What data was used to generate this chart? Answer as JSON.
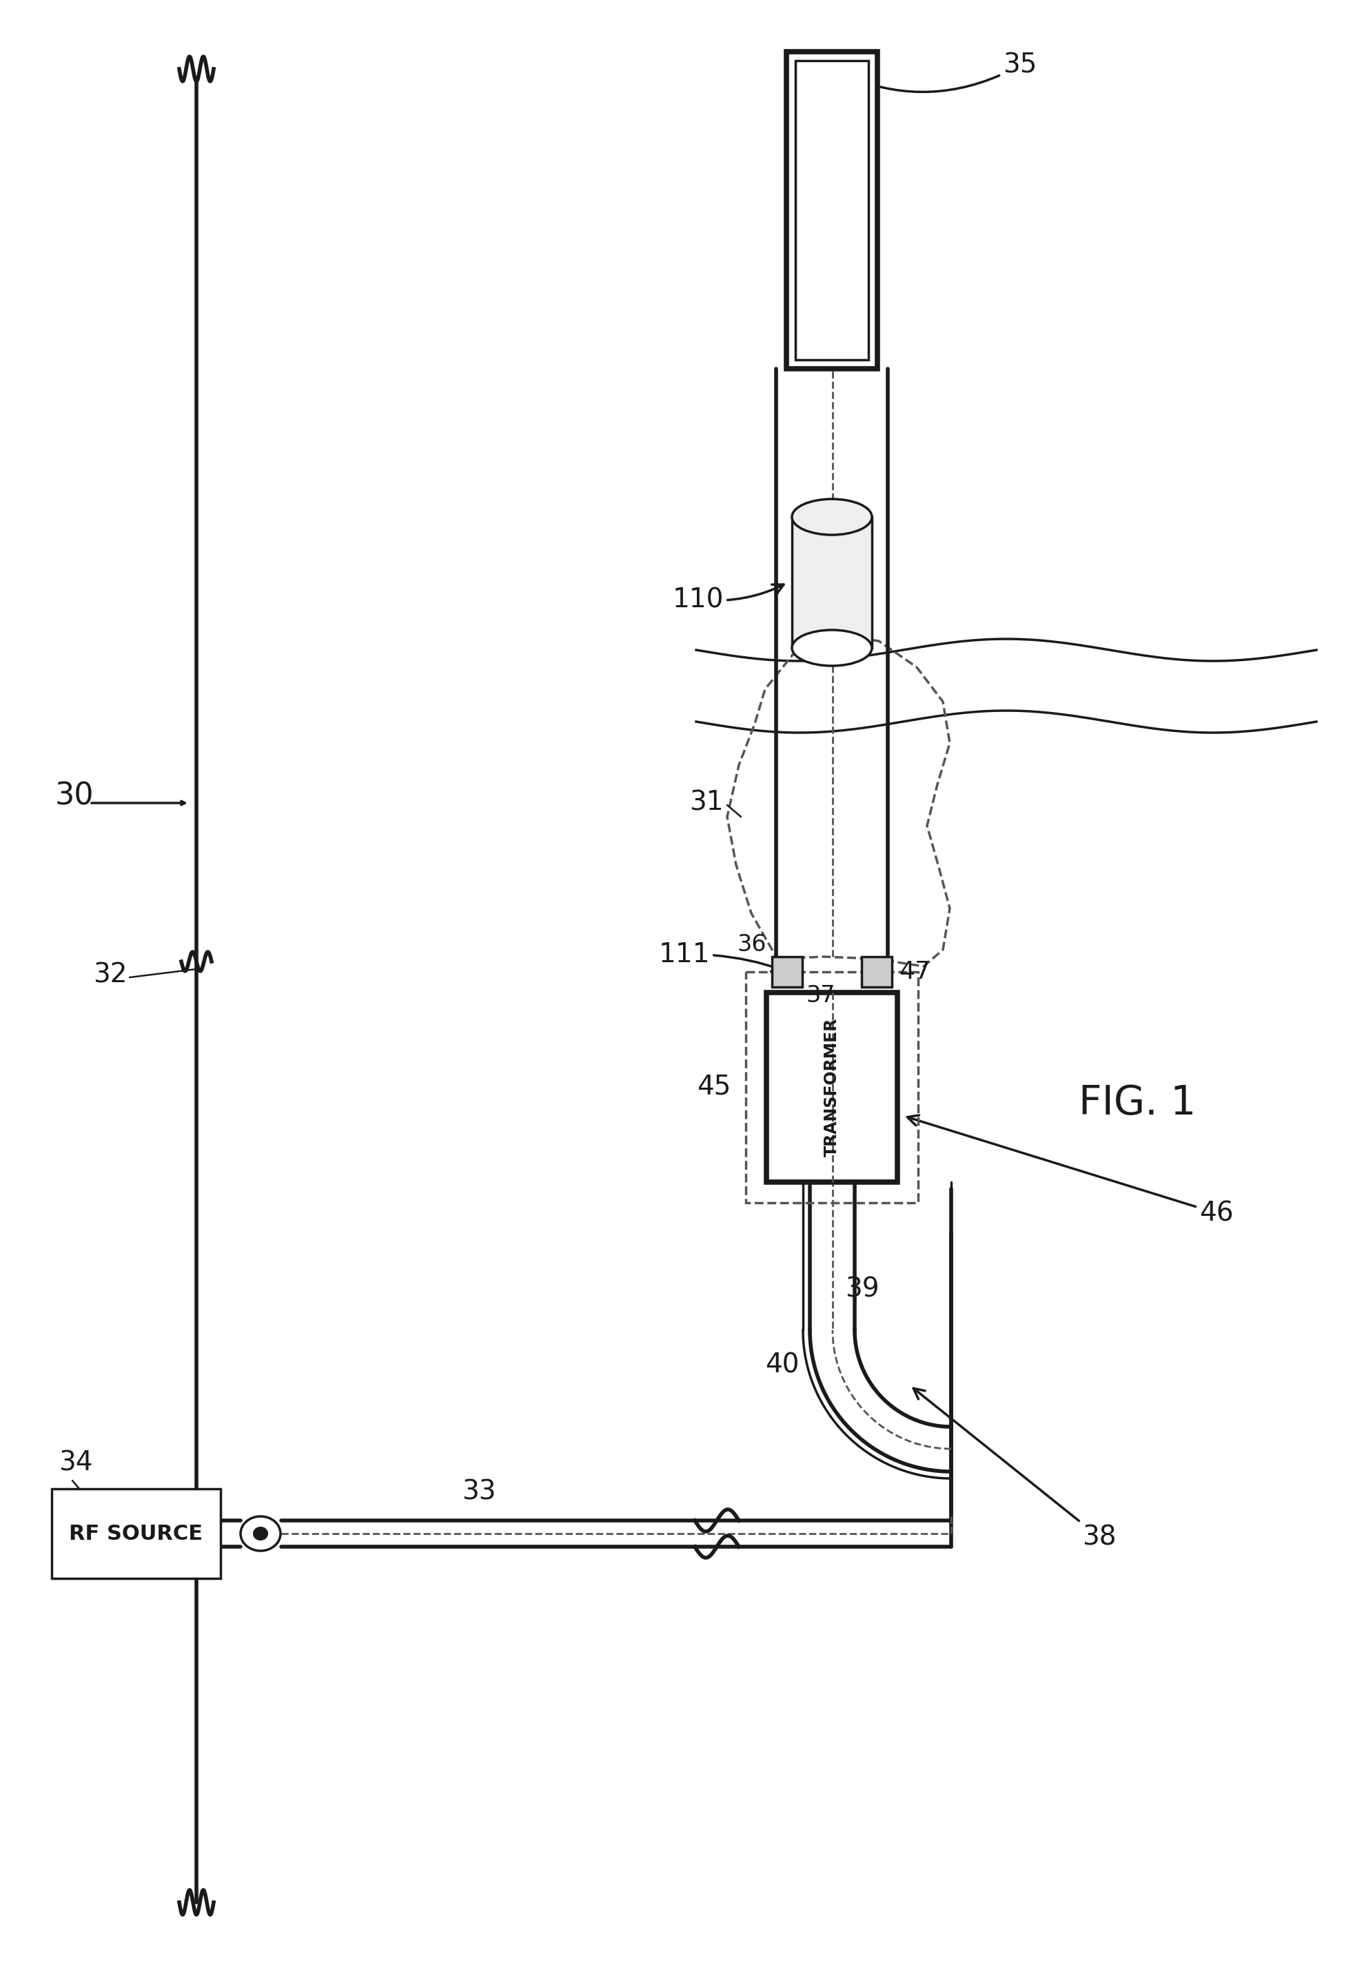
{
  "bg_color": "#ffffff",
  "line_color": "#1a1a1a",
  "dashed_color": "#555555",
  "fig_label": "FIG. 1"
}
